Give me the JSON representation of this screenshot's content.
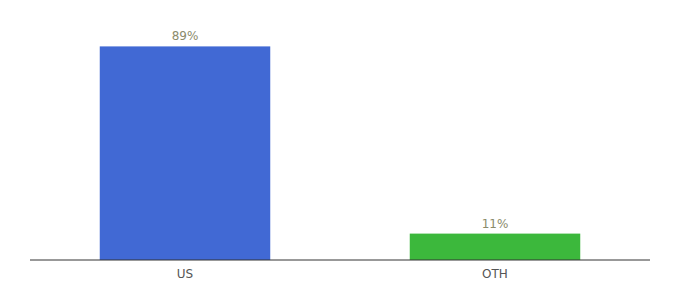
{
  "chart_data": {
    "type": "bar",
    "categories": [
      "US",
      "OTH"
    ],
    "values": [
      89,
      11
    ],
    "value_labels": [
      "89%",
      "11%"
    ],
    "colors": [
      "#4169d4",
      "#3cb83c"
    ],
    "ylim": [
      0,
      100
    ],
    "data_labels": true,
    "tick_labels": "x",
    "grid": false
  }
}
